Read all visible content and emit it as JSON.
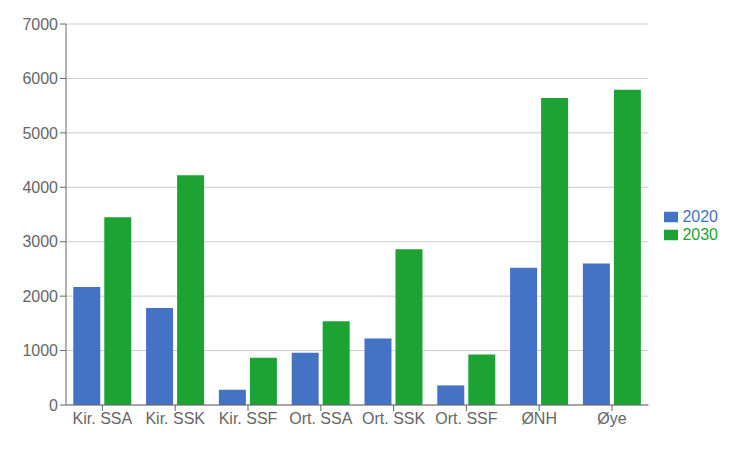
{
  "chart_data": {
    "type": "bar",
    "categories": [
      "Kir. SSA",
      "Kir. SSK",
      "Kir. SSF",
      "Ort. SSA",
      "Ort. SSK",
      "Ort. SSF",
      "ØNH",
      "Øye"
    ],
    "series": [
      {
        "name": "2020",
        "color": "#4472c4",
        "values": [
          2170,
          1780,
          280,
          960,
          1220,
          360,
          2520,
          2600
        ]
      },
      {
        "name": "2030",
        "color": "#1da333",
        "values": [
          3450,
          4220,
          870,
          1540,
          2860,
          930,
          5640,
          5790
        ]
      }
    ],
    "ylim": [
      0,
      7000
    ],
    "yticks": [
      0,
      1000,
      2000,
      3000,
      4000,
      5000,
      6000,
      7000
    ],
    "grid": true,
    "legend": "right"
  }
}
